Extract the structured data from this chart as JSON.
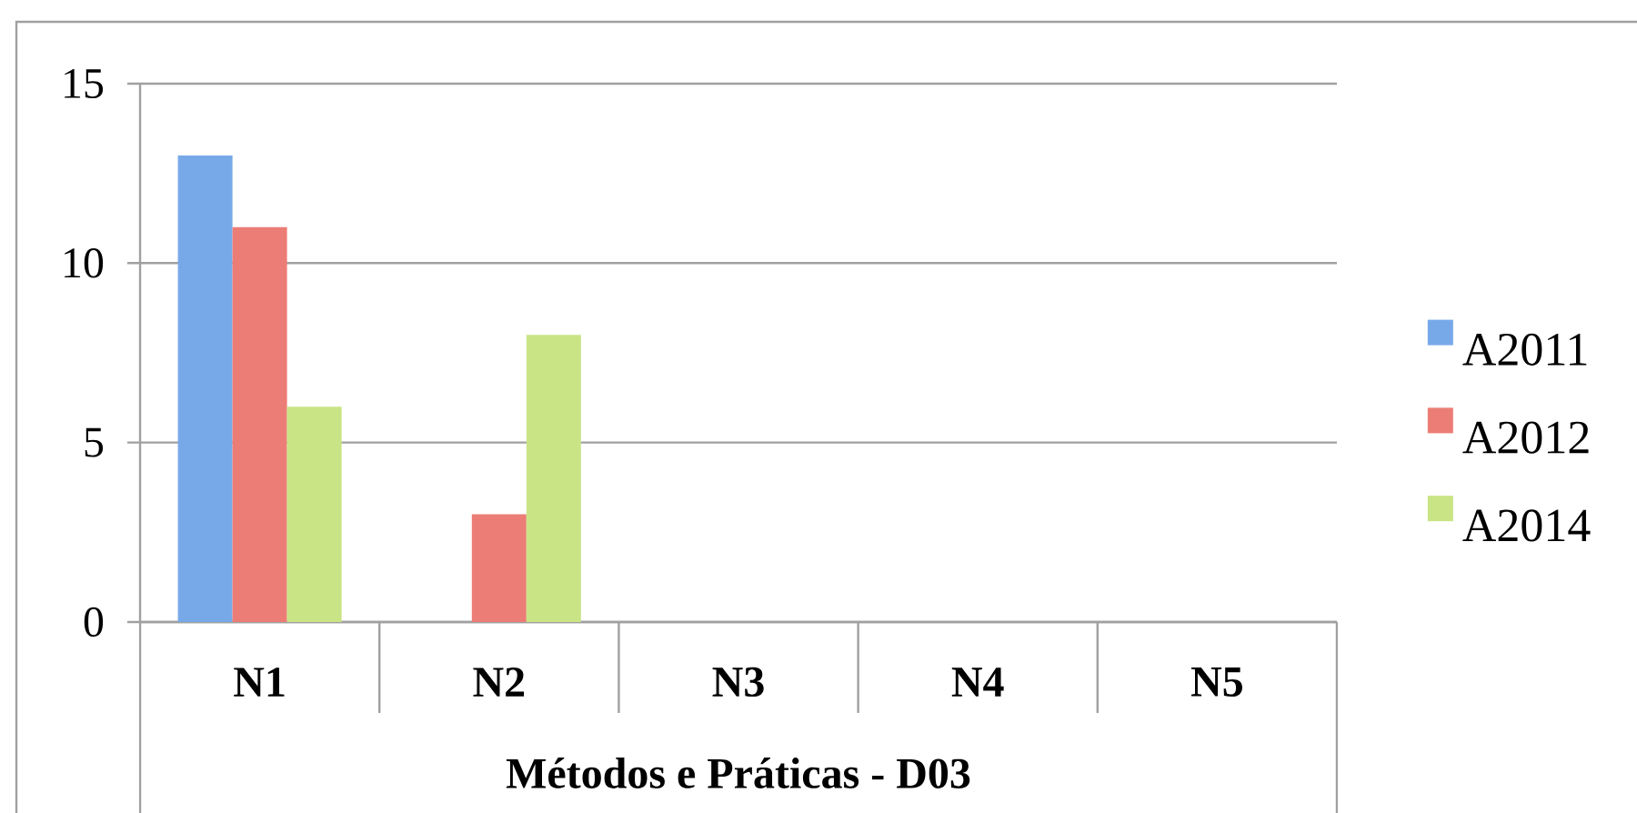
{
  "chart_data": {
    "type": "bar",
    "xlabel": "Métodos e Práticas - D03",
    "categories": [
      "N1",
      "N2",
      "N3",
      "N4",
      "N5"
    ],
    "series": [
      {
        "name": "A2011",
        "color": "#77a9e9",
        "values": [
          13,
          0,
          0,
          0,
          0
        ]
      },
      {
        "name": "A2012",
        "color": "#ec7d76",
        "values": [
          11,
          3,
          0,
          0,
          0
        ]
      },
      {
        "name": "A2014",
        "color": "#c9e485",
        "values": [
          6,
          8,
          0,
          0,
          0
        ]
      }
    ],
    "ylim": [
      0,
      15
    ],
    "yticks": [
      0,
      5,
      10,
      15
    ],
    "grid": "y",
    "legend": "right"
  }
}
